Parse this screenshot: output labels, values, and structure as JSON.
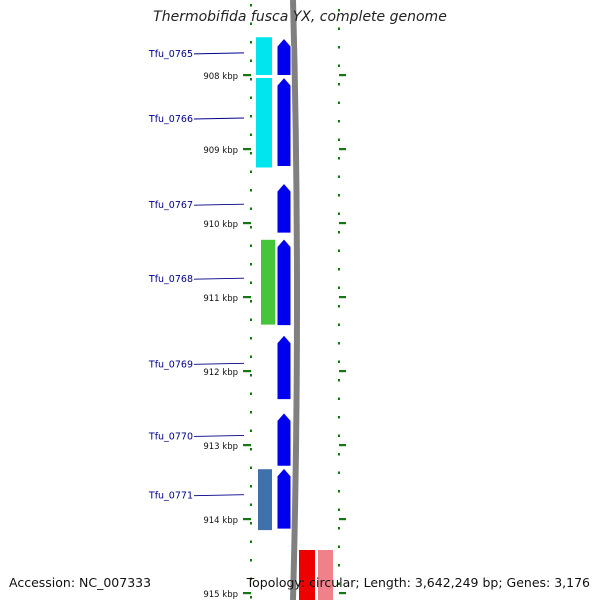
{
  "title": "Thermobifida fusca YX, complete genome",
  "accession_text": "Accession: NC_007333",
  "summary_text": "Topology: circular; Length: 3,642,249 bp; Genes: 3,176",
  "ticks": [
    {
      "label": "908 kbp",
      "kbp": 908
    },
    {
      "label": "909 kbp",
      "kbp": 909
    },
    {
      "label": "910 kbp",
      "kbp": 910
    },
    {
      "label": "911 kbp",
      "kbp": 911
    },
    {
      "label": "912 kbp",
      "kbp": 912
    },
    {
      "label": "913 kbp",
      "kbp": 913
    },
    {
      "label": "914 kbp",
      "kbp": 914
    },
    {
      "label": "915 kbp",
      "kbp": 915
    }
  ],
  "genes": [
    {
      "label": "Tfu_0765",
      "start_kbp": 907.49,
      "end_kbp": 908.02
    },
    {
      "label": "Tfu_0766",
      "start_kbp": 908.02,
      "end_kbp": 909.25
    },
    {
      "label": "Tfu_0767",
      "start_kbp": 909.45,
      "end_kbp": 910.15
    },
    {
      "label": "Tfu_0768",
      "start_kbp": 910.2,
      "end_kbp": 911.4
    },
    {
      "label": "Tfu_0769",
      "start_kbp": 911.5,
      "end_kbp": 912.4
    },
    {
      "label": "Tfu_0770",
      "start_kbp": 912.55,
      "end_kbp": 913.3
    },
    {
      "label": "Tfu_0771",
      "start_kbp": 913.3,
      "end_kbp": 914.15
    }
  ],
  "colors": {
    "gene_arrow": "#0000ee",
    "cds_cyan": "#00e5ee",
    "cds_green": "#44c53a",
    "cds_steelblue": "#3f72ad",
    "feature_red": "#ee0000",
    "feature_pink": "#f0808a",
    "backbone": "#808080",
    "tick_green": "#117711",
    "label_blue": "#00008b"
  }
}
